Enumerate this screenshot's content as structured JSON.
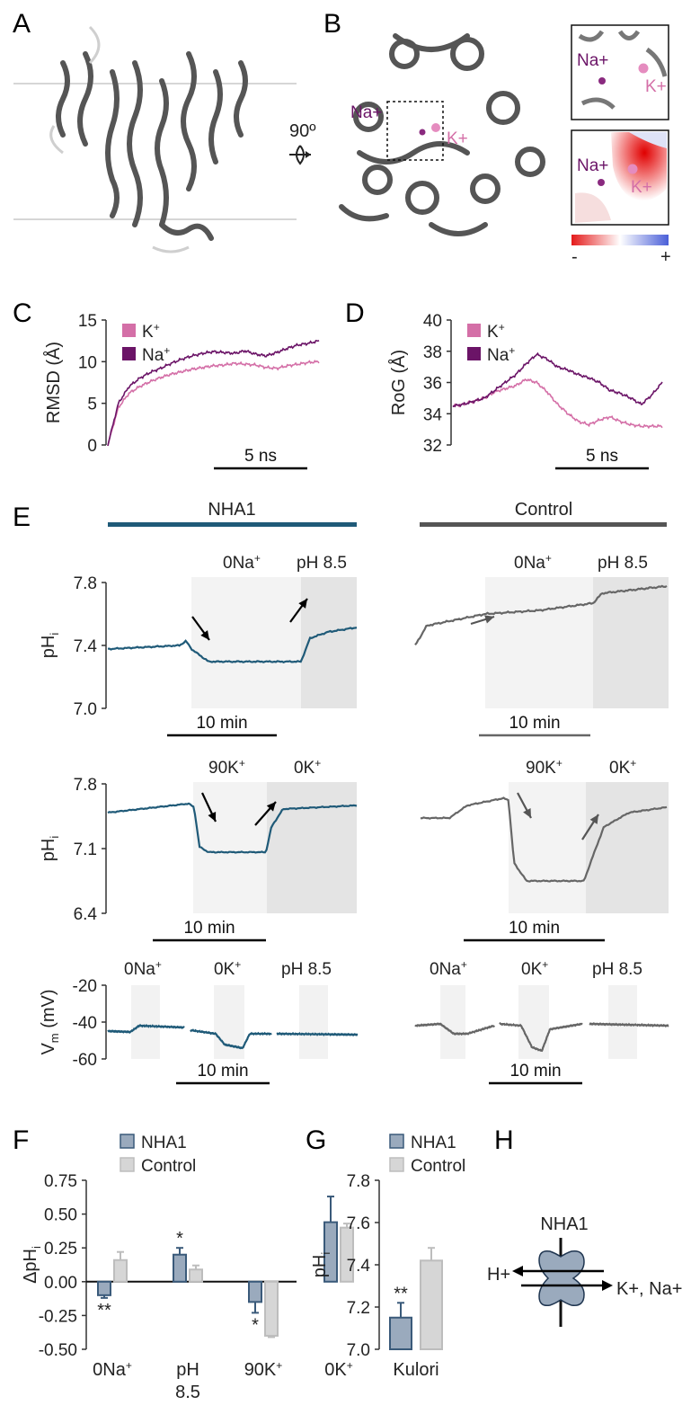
{
  "panels": {
    "A": "A",
    "B": "B",
    "C": "C",
    "D": "D",
    "E": "E",
    "F": "F",
    "G": "G",
    "H": "H"
  },
  "structure": {
    "rotation_label": "90º",
    "ion_na": "Na+",
    "ion_k": "K+",
    "scale_minus": "-",
    "scale_plus": "+"
  },
  "colors": {
    "k": "#d46fa7",
    "na": "#6b1467",
    "nha1": "#1f5a78",
    "control": "#666666",
    "bar_nha1": "#9aaabd",
    "bar_control": "#d6d6d6"
  },
  "chart_data": [
    {
      "id": "C",
      "type": "line",
      "ylabel": "RMSD (Å)",
      "yticks": [
        "15",
        "10",
        "5",
        "0"
      ],
      "ylim": [
        0,
        15
      ],
      "scalebar": "5 ns",
      "legend": [
        "K+",
        "Na+"
      ],
      "series": [
        {
          "name": "K+",
          "values": [
            0,
            4.5,
            6.2,
            7.0,
            7.6,
            8.1,
            8.5,
            8.8,
            9.1,
            9.3,
            9.5,
            9.6,
            9.8,
            9.7,
            9.6,
            9.3,
            9.2,
            9.5,
            9.7,
            9.9,
            10.0
          ]
        },
        {
          "name": "Na+",
          "values": [
            0,
            5.0,
            7.0,
            8.0,
            8.7,
            9.2,
            9.8,
            10.3,
            10.7,
            11.0,
            11.2,
            11.1,
            11.0,
            11.3,
            10.9,
            10.7,
            11.1,
            11.6,
            12.0,
            12.2,
            12.5
          ]
        }
      ]
    },
    {
      "id": "D",
      "type": "line",
      "ylabel": "RoG (Å)",
      "yticks": [
        "40",
        "38",
        "36",
        "34",
        "32"
      ],
      "ylim": [
        32,
        40
      ],
      "scalebar": "5 ns",
      "legend": [
        "K+",
        "Na+"
      ],
      "series": [
        {
          "name": "K+",
          "values": [
            34.5,
            34.6,
            34.8,
            35.0,
            35.4,
            35.6,
            35.8,
            36.2,
            36.0,
            35.4,
            34.6,
            34.0,
            33.5,
            33.3,
            33.6,
            33.8,
            33.5,
            33.3,
            33.2,
            33.2,
            33.2
          ]
        },
        {
          "name": "Na+",
          "values": [
            34.5,
            34.6,
            34.8,
            35.0,
            35.5,
            36.0,
            36.5,
            37.2,
            37.8,
            37.5,
            37.0,
            36.8,
            36.5,
            36.3,
            36.0,
            35.5,
            35.3,
            35.0,
            34.6,
            35.2,
            36.0
          ]
        }
      ]
    },
    {
      "id": "F",
      "type": "bar",
      "ylabel": "ΔpHi",
      "yticks": [
        "0.75",
        "0.50",
        "0.25",
        "0.00",
        "-0.25",
        "-0.50"
      ],
      "ylim": [
        -0.5,
        0.75
      ],
      "categories": [
        "0Na+",
        "pH 8.5",
        "90K+",
        "0K+"
      ],
      "legend": [
        "NHA1",
        "Control"
      ],
      "series": [
        {
          "name": "NHA1",
          "values": [
            -0.1,
            0.2,
            -0.15,
            0.44
          ],
          "errors": [
            0.02,
            0.05,
            0.08,
            0.19
          ]
        },
        {
          "name": "Control",
          "values": [
            0.16,
            0.09,
            -0.4,
            0.4
          ],
          "errors": [
            0.06,
            0.03,
            0.01,
            0.03
          ]
        }
      ],
      "significance": [
        "**",
        "*",
        "*",
        ""
      ]
    },
    {
      "id": "G",
      "type": "bar",
      "ylabel": "pHi",
      "yticks": [
        "7.8",
        "7.6",
        "7.4",
        "7.2",
        "7.0"
      ],
      "ylim": [
        7.0,
        7.8
      ],
      "categories": [
        "Kulori"
      ],
      "legend": [
        "NHA1",
        "Control"
      ],
      "series": [
        {
          "name": "NHA1",
          "values": [
            7.15
          ],
          "errors": [
            0.07
          ]
        },
        {
          "name": "Control",
          "values": [
            7.42
          ],
          "errors": [
            0.06
          ]
        }
      ],
      "significance": [
        "**"
      ]
    }
  ],
  "panel_e": {
    "group_nha1": "NHA1",
    "group_control": "Control",
    "row1": {
      "ylabel": "pHi",
      "yticks": [
        "7.8",
        "7.4",
        "7.0"
      ],
      "cond1": "0Na+",
      "cond2": "pH 8.5",
      "scalebar": "10 min"
    },
    "row2": {
      "ylabel": "pHi",
      "yticks": [
        "7.8",
        "7.1",
        "6.4"
      ],
      "cond1": "90K+",
      "cond2": "0K+",
      "scalebar": "10 min"
    },
    "row3": {
      "ylabel": "Vm (mV)",
      "yticks": [
        "-20",
        "-40",
        "-60"
      ],
      "cond1": "0Na+",
      "cond2": "0K+",
      "cond3": "pH 8.5",
      "scalebar": "10 min"
    }
  },
  "panel_h": {
    "title": "NHA1",
    "left": "H+",
    "right": "K+, Na+"
  }
}
